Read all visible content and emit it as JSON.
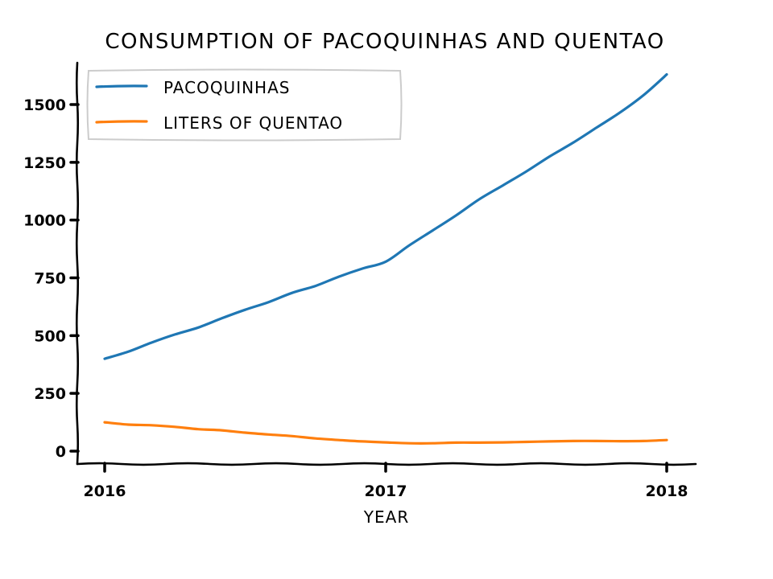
{
  "chart_data": {
    "type": "line",
    "title": "CONSUMPTION OF PACOQUINHAS AND QUENTAO",
    "xlabel": "YEAR",
    "ylabel": "",
    "xlim": [
      2015.95,
      2018.1
    ],
    "ylim": [
      -50,
      1680
    ],
    "x_ticks": [
      2016,
      2017,
      2018
    ],
    "x_tick_labels": [
      "2016",
      "2017",
      "2018"
    ],
    "y_ticks": [
      0,
      250,
      500,
      750,
      1000,
      1250,
      1500
    ],
    "y_tick_labels": [
      "0",
      "250",
      "500",
      "750",
      "1000",
      "1250",
      "1500"
    ],
    "grid": false,
    "legend_position": "upper-left",
    "x": [
      2016.0,
      2016.083,
      2016.167,
      2016.25,
      2016.333,
      2016.417,
      2016.5,
      2016.583,
      2016.667,
      2016.75,
      2016.833,
      2016.917,
      2017.0,
      2017.083,
      2017.167,
      2017.25,
      2017.333,
      2017.417,
      2017.5,
      2017.583,
      2017.667,
      2017.75,
      2017.833,
      2017.917,
      2018.0
    ],
    "series": [
      {
        "name": "PACOQUINHAS",
        "color": "#1f77b4",
        "values": [
          400,
          430,
          470,
          505,
          535,
          575,
          612,
          645,
          685,
          715,
          755,
          790,
          820,
          890,
          955,
          1020,
          1090,
          1150,
          1210,
          1275,
          1335,
          1400,
          1465,
          1540,
          1630
        ]
      },
      {
        "name": "LITERS OF QUENTAO",
        "color": "#ff7f0e",
        "values": [
          125,
          115,
          112,
          105,
          95,
          90,
          80,
          72,
          65,
          55,
          48,
          42,
          38,
          34,
          34,
          37,
          37,
          38,
          40,
          42,
          44,
          44,
          43,
          44,
          48
        ]
      }
    ]
  }
}
